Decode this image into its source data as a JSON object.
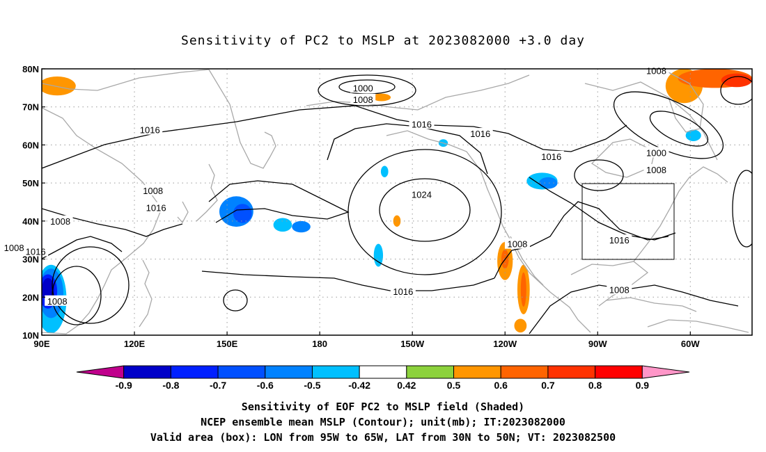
{
  "title": "Sensitivity of PC2 to MSLP at 2023082000 +3.0 day",
  "captions": [
    "Sensitivity of EOF PC2 to MSLP field (Shaded)",
    "NCEP ensemble mean MSLP (Contour); unit(mb); IT:2023082000",
    "Valid area (box): LON from 95W to 65W, LAT from 30N to 50N; VT: 2023082500"
  ],
  "map": {
    "lon_range": [
      90,
      320
    ],
    "lat_range": [
      10,
      80
    ],
    "lat_ticks": [
      {
        "lat": 80,
        "label": "80N"
      },
      {
        "lat": 70,
        "label": "70N"
      },
      {
        "lat": 60,
        "label": "60N"
      },
      {
        "lat": 50,
        "label": "50N"
      },
      {
        "lat": 40,
        "label": "40N"
      },
      {
        "lat": 30,
        "label": "30N"
      },
      {
        "lat": 20,
        "label": "20N"
      },
      {
        "lat": 10,
        "label": "10N"
      }
    ],
    "lon_ticks": [
      {
        "lon": 90,
        "label": "90E"
      },
      {
        "lon": 120,
        "label": "120E"
      },
      {
        "lon": 150,
        "label": "150E"
      },
      {
        "lon": 180,
        "label": "180"
      },
      {
        "lon": 210,
        "label": "150W"
      },
      {
        "lon": 240,
        "label": "120W"
      },
      {
        "lon": 270,
        "label": "90W"
      },
      {
        "lon": 300,
        "label": "60W"
      }
    ],
    "valid_box": {
      "lon": [
        265,
        295
      ],
      "lat": [
        30,
        50
      ]
    },
    "contour_labels": [
      {
        "text": "1000",
        "lon": 194,
        "lat": 75
      },
      {
        "text": "1008",
        "lon": 194,
        "lat": 72
      },
      {
        "text": "1008",
        "lon": 289,
        "lat": 79.5
      },
      {
        "text": "1016",
        "lon": 125,
        "lat": 64
      },
      {
        "text": "1016",
        "lon": 213,
        "lat": 65.5
      },
      {
        "text": "1016",
        "lon": 232,
        "lat": 63
      },
      {
        "text": "1016",
        "lon": 255,
        "lat": 57
      },
      {
        "text": "1000",
        "lon": 289,
        "lat": 58
      },
      {
        "text": "1008",
        "lon": 289,
        "lat": 53.5
      },
      {
        "text": "1008",
        "lon": 126,
        "lat": 48
      },
      {
        "text": "1016",
        "lon": 127,
        "lat": 43.5
      },
      {
        "text": "1024",
        "lon": 213,
        "lat": 47
      },
      {
        "text": "1008",
        "lon": 96,
        "lat": 40
      },
      {
        "text": "1016",
        "lon": 88,
        "lat": 32
      },
      {
        "text": "1008",
        "lon": 81,
        "lat": 33
      },
      {
        "text": "1008",
        "lon": 244,
        "lat": 34
      },
      {
        "text": "1016",
        "lon": 277,
        "lat": 35
      },
      {
        "text": "1016",
        "lon": 207,
        "lat": 21.5
      },
      {
        "text": "1008",
        "lon": 277,
        "lat": 22
      },
      {
        "text": "1008",
        "lon": 95,
        "lat": 19
      }
    ],
    "shading": [
      {
        "lon": 153,
        "lat": 42.5,
        "rlon": 5.5,
        "rlat": 4.0,
        "level": -0.6
      },
      {
        "lon": 155,
        "lat": 42.0,
        "rlon": 3.0,
        "rlat": 2.5,
        "level": -0.7
      },
      {
        "lon": 168,
        "lat": 39.0,
        "rlon": 3.0,
        "rlat": 1.8,
        "level": -0.5
      },
      {
        "lon": 174,
        "lat": 38.5,
        "rlon": 3.0,
        "rlat": 1.5,
        "level": -0.6
      },
      {
        "lon": 199,
        "lat": 31.0,
        "rlon": 1.5,
        "rlat": 3.0,
        "level": -0.5
      },
      {
        "lon": 201,
        "lat": 53.0,
        "rlon": 1.2,
        "rlat": 1.5,
        "level": -0.5
      },
      {
        "lon": 220,
        "lat": 60.5,
        "rlon": 1.5,
        "rlat": 1.0,
        "level": -0.5
      },
      {
        "lon": 252,
        "lat": 50.5,
        "rlon": 5.0,
        "rlat": 2.2,
        "level": -0.5
      },
      {
        "lon": 254,
        "lat": 50.0,
        "rlon": 3.0,
        "rlat": 1.5,
        "level": -0.6
      },
      {
        "lon": 301,
        "lat": 62.5,
        "rlon": 2.5,
        "rlat": 1.5,
        "level": -0.5
      },
      {
        "lon": 93,
        "lat": 19.5,
        "rlon": 5.0,
        "rlat": 9.0,
        "level": -0.5
      },
      {
        "lon": 93,
        "lat": 21.0,
        "rlon": 4.0,
        "rlat": 6.5,
        "level": -0.6
      },
      {
        "lon": 92,
        "lat": 21.5,
        "rlon": 3.0,
        "rlat": 4.5,
        "level": -0.8
      },
      {
        "lon": 92,
        "lat": 22.0,
        "rlon": 2.0,
        "rlat": 3.0,
        "level": -0.9
      },
      {
        "lon": 95,
        "lat": 75.5,
        "rlon": 6.0,
        "rlat": 2.5,
        "level": 0.5
      },
      {
        "lon": 200,
        "lat": 72.5,
        "rlon": 3.0,
        "rlat": 1.0,
        "level": 0.5
      },
      {
        "lon": 205,
        "lat": 40.0,
        "rlon": 1.2,
        "rlat": 1.5,
        "level": 0.5
      },
      {
        "lon": 240,
        "lat": 29.5,
        "rlon": 2.5,
        "rlat": 5.0,
        "level": 0.5
      },
      {
        "lon": 240,
        "lat": 30.0,
        "rlon": 1.2,
        "rlat": 2.5,
        "level": 0.6
      },
      {
        "lon": 246,
        "lat": 22.0,
        "rlon": 2.0,
        "rlat": 6.5,
        "level": 0.5
      },
      {
        "lon": 246,
        "lat": 22.0,
        "rlon": 0.9,
        "rlat": 4.5,
        "level": 0.6
      },
      {
        "lon": 245,
        "lat": 12.5,
        "rlon": 2.0,
        "rlat": 1.8,
        "level": 0.5
      },
      {
        "lon": 298,
        "lat": 75.5,
        "rlon": 6.0,
        "rlat": 4.5,
        "level": 0.5
      },
      {
        "lon": 308,
        "lat": 77.5,
        "rlon": 12.0,
        "rlat": 2.5,
        "level": 0.6
      },
      {
        "lon": 315,
        "lat": 77.0,
        "rlon": 5.0,
        "rlat": 1.8,
        "level": 0.7
      }
    ]
  },
  "colorbar": {
    "colors": [
      "#c0008c",
      "#0000c8",
      "#0020ff",
      "#0050ff",
      "#0082ff",
      "#00c0ff",
      "#ffffff",
      "#8cd23c",
      "#ff9600",
      "#ff6400",
      "#ff3200",
      "#ff0000",
      "#ff96c8"
    ],
    "labels": [
      "-0.9",
      "-0.8",
      "-0.7",
      "-0.6",
      "-0.5",
      "-0.42",
      "0.42",
      "0.5",
      "0.6",
      "0.7",
      "0.8",
      "0.9"
    ]
  }
}
